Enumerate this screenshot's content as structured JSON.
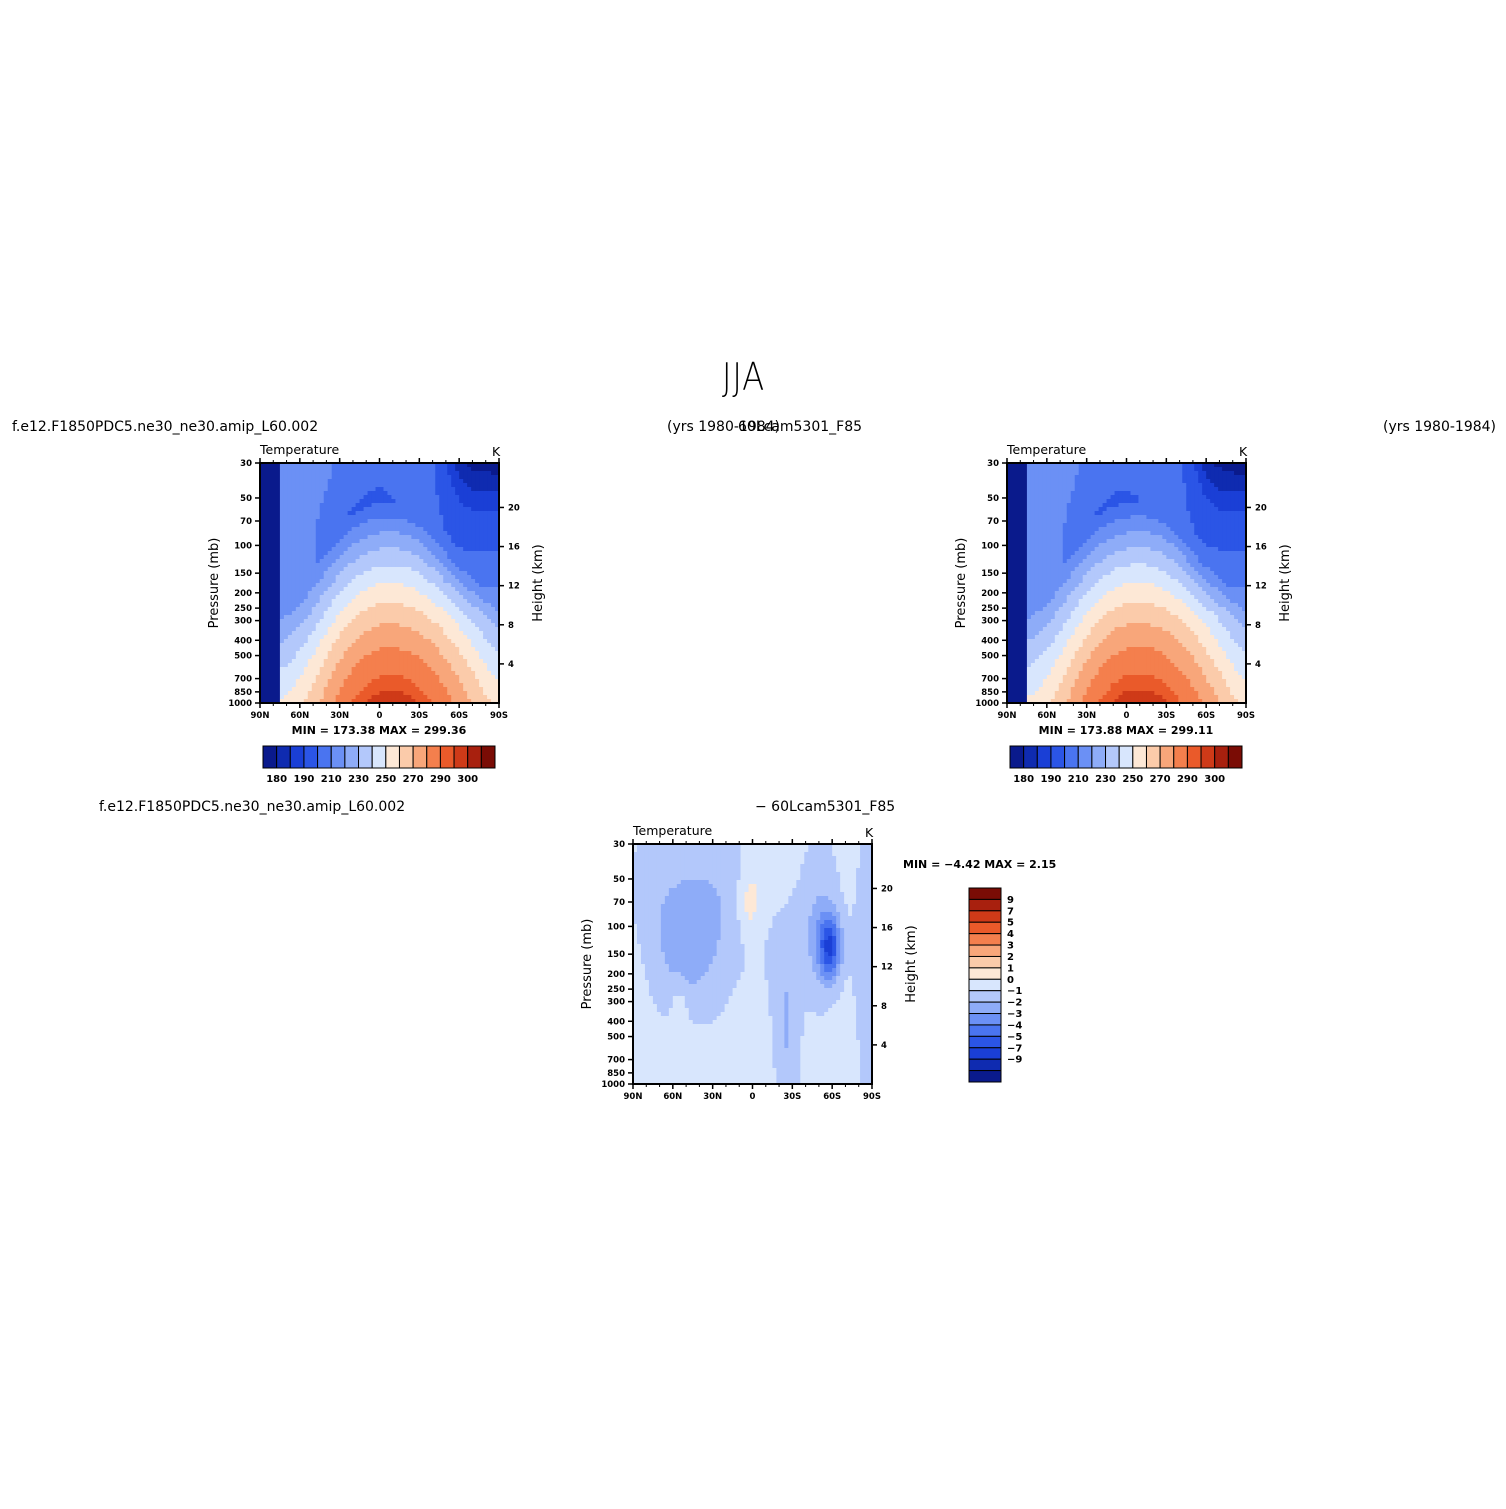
{
  "figure": {
    "season_title": "JJA",
    "top_left_header": {
      "case_title": "f.e12.F1850PDC5.ne30_ne30.amip_L60.002",
      "years": "(yrs  1980-1984)"
    },
    "top_right_header": {
      "case_title": "60Lcam5301_F85",
      "years": "(yrs  1980-1984)"
    },
    "diff_header": {
      "case_title": "f.e12.F1850PDC5.ne30_ne30.amip_L60.002",
      "minus_case": "−  60Lcam5301_F85"
    }
  },
  "chart_data": [
    {
      "id": "panel-a",
      "type": "heatmap",
      "subtitle": "Temperature",
      "units": "K",
      "ylabel_left": "Pressure  (mb)",
      "ylabel_right": "Height  (km)",
      "x_ticks": [
        "90N",
        "60N",
        "30N",
        "0",
        "30S",
        "60S",
        "90S"
      ],
      "x_values": [
        -90,
        -60,
        -30,
        0,
        30,
        60,
        90
      ],
      "pressure_ticks": [
        30,
        50,
        70,
        100,
        150,
        200,
        250,
        300,
        400,
        500,
        700,
        850,
        1000
      ],
      "height_ticks": [
        4,
        8,
        12,
        16,
        20
      ],
      "minmax_text": "MIN  =  173.38    MAX  =  299.36",
      "min": 173.38,
      "max": 299.36,
      "levels": [
        180,
        185,
        190,
        200,
        210,
        220,
        230,
        240,
        250,
        260,
        270,
        280,
        290,
        295,
        300
      ],
      "colorbar_labels": [
        "180",
        "190",
        "210",
        "230",
        "250",
        "270",
        "290",
        "300"
      ],
      "colors": [
        "#0a1a8c",
        "#0f2bb0",
        "#1a3fd6",
        "#2b55e6",
        "#4a74f0",
        "#6b90f5",
        "#8eacf8",
        "#b3c8fb",
        "#d8e6fd",
        "#fde8d6",
        "#fbcbaa",
        "#f8a67a",
        "#f47f4d",
        "#ea5a2a",
        "#cf3a18",
        "#a8200e",
        "#7a0c05"
      ]
    },
    {
      "id": "panel-b",
      "type": "heatmap",
      "subtitle": "Temperature",
      "units": "K",
      "ylabel_left": "Pressure  (mb)",
      "ylabel_right": "Height  (km)",
      "x_ticks": [
        "90N",
        "60N",
        "30N",
        "0",
        "30S",
        "60S",
        "90S"
      ],
      "x_values": [
        -90,
        -60,
        -30,
        0,
        30,
        60,
        90
      ],
      "pressure_ticks": [
        30,
        50,
        70,
        100,
        150,
        200,
        250,
        300,
        400,
        500,
        700,
        850,
        1000
      ],
      "height_ticks": [
        4,
        8,
        12,
        16,
        20
      ],
      "minmax_text": "MIN  =  173.88    MAX  =  299.11",
      "min": 173.88,
      "max": 299.11,
      "levels": [
        180,
        185,
        190,
        200,
        210,
        220,
        230,
        240,
        250,
        260,
        270,
        280,
        290,
        295,
        300
      ],
      "colorbar_labels": [
        "180",
        "190",
        "210",
        "230",
        "250",
        "270",
        "290",
        "300"
      ],
      "colors": [
        "#0a1a8c",
        "#0f2bb0",
        "#1a3fd6",
        "#2b55e6",
        "#4a74f0",
        "#6b90f5",
        "#8eacf8",
        "#b3c8fb",
        "#d8e6fd",
        "#fde8d6",
        "#fbcbaa",
        "#f8a67a",
        "#f47f4d",
        "#ea5a2a",
        "#cf3a18",
        "#a8200e",
        "#7a0c05"
      ]
    },
    {
      "id": "panel-diff",
      "type": "heatmap",
      "subtitle": "Temperature",
      "units": "K",
      "ylabel_left": "Pressure  (mb)",
      "ylabel_right": "Height  (km)",
      "x_ticks": [
        "90N",
        "60N",
        "30N",
        "0",
        "30S",
        "60S",
        "90S"
      ],
      "x_values": [
        -90,
        -60,
        -30,
        0,
        30,
        60,
        90
      ],
      "pressure_ticks": [
        30,
        50,
        70,
        100,
        150,
        200,
        250,
        300,
        400,
        500,
        700,
        850,
        1000
      ],
      "height_ticks": [
        4,
        8,
        12,
        16,
        20
      ],
      "minmax_text": "MIN  =   −4.42   MAX  =    2.15",
      "min": -4.42,
      "max": 2.15,
      "levels": [
        -9,
        -7,
        -5,
        -4,
        -3,
        -2,
        -1,
        0,
        1,
        2,
        3,
        4,
        5,
        7,
        9
      ],
      "colorbar_labels": [
        "9",
        "7",
        "5",
        "4",
        "3",
        "2",
        "1",
        "0",
        "−1",
        "−2",
        "−3",
        "−4",
        "−5",
        "−7",
        "−9"
      ],
      "colors": [
        "#0a1a8c",
        "#0f2bb0",
        "#1a3fd6",
        "#2b55e6",
        "#4a74f0",
        "#6b90f5",
        "#8eacf8",
        "#b3c8fb",
        "#d8e6fd",
        "#fde8d6",
        "#fbcbaa",
        "#f8a67a",
        "#f47f4d",
        "#ea5a2a",
        "#cf3a18",
        "#a8200e",
        "#7a0c05"
      ]
    }
  ]
}
